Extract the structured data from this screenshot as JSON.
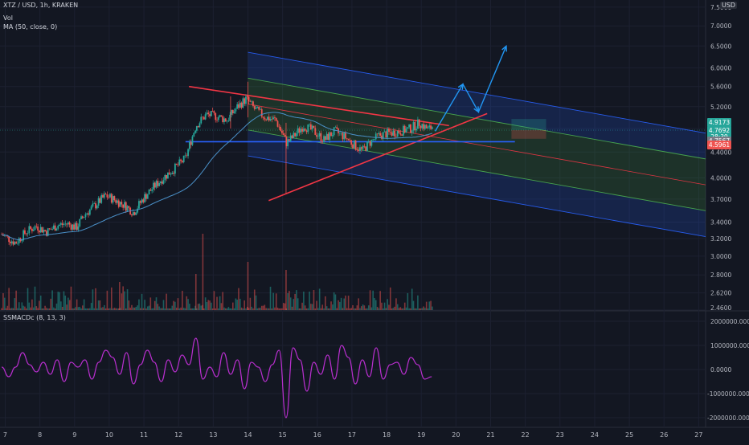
{
  "header": {
    "title": "XTZ / USD, 1h, KRAKEN",
    "vol_label": "Vol",
    "ma_label": "MA (50, close, 0)",
    "currency": "USD",
    "macd_label": "SSMACDc (8, 13, 3)"
  },
  "price_tags": [
    {
      "text": "4.9173",
      "color": "#26a69a"
    },
    {
      "text": "4.7692",
      "color": "#26a69a"
    },
    {
      "text": "28:39",
      "color": "#26a69a"
    },
    {
      "text": "4.7567",
      "color": "#787b86"
    },
    {
      "text": "4.5961",
      "color": "#ef5350"
    }
  ],
  "chart_data": [
    {
      "type": "candlestick",
      "pane": "price",
      "title": "XTZ / USD, 1h, KRAKEN",
      "y_scale": "log",
      "y_ticks": [
        "7.5000",
        "7.0000",
        "6.5000",
        "6.0000",
        "5.6000",
        "5.2000",
        "4.8000",
        "4.4000",
        "4.0000",
        "3.7000",
        "3.4000",
        "3.2000",
        "3.0000",
        "2.8000",
        "2.6200",
        "2.4600"
      ],
      "x_ticks": [
        "7",
        "8",
        "9",
        "10",
        "11",
        "12",
        "13",
        "14",
        "15",
        "16",
        "17",
        "18",
        "19",
        "20",
        "21",
        "22",
        "23",
        "24",
        "25",
        "26",
        "27"
      ],
      "x_range": [
        6.85,
        27.2
      ],
      "y_range": [
        2.46,
        7.7
      ],
      "close_path": [
        [
          6.9,
          3.25
        ],
        [
          7.3,
          3.15
        ],
        [
          7.6,
          3.28
        ],
        [
          7.9,
          3.35
        ],
        [
          8.2,
          3.28
        ],
        [
          8.5,
          3.36
        ],
        [
          8.8,
          3.38
        ],
        [
          9.05,
          3.33
        ],
        [
          9.3,
          3.5
        ],
        [
          9.6,
          3.62
        ],
        [
          9.9,
          3.75
        ],
        [
          10.2,
          3.68
        ],
        [
          10.5,
          3.6
        ],
        [
          10.7,
          3.52
        ],
        [
          11.0,
          3.72
        ],
        [
          11.3,
          3.88
        ],
        [
          11.6,
          4.02
        ],
        [
          11.9,
          4.15
        ],
        [
          12.2,
          4.3
        ],
        [
          12.5,
          4.85
        ],
        [
          12.8,
          5.05
        ],
        [
          13.1,
          5.02
        ],
        [
          13.4,
          4.95
        ],
        [
          13.7,
          5.2
        ],
        [
          13.95,
          5.35
        ],
        [
          14.2,
          5.15
        ],
        [
          14.5,
          5.0
        ],
        [
          14.8,
          4.95
        ],
        [
          15.0,
          4.7
        ],
        [
          15.1,
          4.55
        ],
        [
          15.3,
          4.65
        ],
        [
          15.6,
          4.85
        ],
        [
          15.9,
          4.75
        ],
        [
          16.2,
          4.6
        ],
        [
          16.5,
          4.75
        ],
        [
          16.8,
          4.65
        ],
        [
          17.1,
          4.5
        ],
        [
          17.3,
          4.42
        ],
        [
          17.5,
          4.55
        ],
        [
          17.8,
          4.68
        ],
        [
          18.1,
          4.72
        ],
        [
          18.4,
          4.75
        ],
        [
          18.7,
          4.8
        ],
        [
          18.95,
          4.9
        ],
        [
          19.2,
          4.78
        ],
        [
          19.35,
          4.85
        ]
      ]
    },
    {
      "type": "bar",
      "pane": "volume",
      "title": "Vol"
    },
    {
      "type": "line",
      "pane": "macd",
      "title": "SSMACDc (8, 13, 3)",
      "y_ticks": [
        "2000000.0000",
        "1000000.0000",
        "0.0000",
        "-1000000.0000",
        "-2000000.0000"
      ],
      "y_range": [
        -2000000,
        2000000
      ],
      "series": [
        {
          "x": [
            6.9,
            7.1,
            7.3,
            7.5,
            7.7,
            7.9,
            8.1,
            8.3,
            8.5,
            8.7,
            8.9,
            9.1,
            9.3,
            9.5,
            9.7,
            9.9,
            10.1,
            10.3,
            10.5,
            10.7,
            10.9,
            11.1,
            11.3,
            11.5,
            11.7,
            11.9,
            12.1,
            12.3,
            12.5,
            12.7,
            12.9,
            13.1,
            13.3,
            13.5,
            13.7,
            13.9,
            14.1,
            14.3,
            14.5,
            14.7,
            14.9,
            15.1,
            15.3,
            15.5,
            15.7,
            15.9,
            16.1,
            16.3,
            16.5,
            16.7,
            16.9,
            17.1,
            17.3,
            17.5,
            17.7,
            17.9,
            18.1,
            18.3,
            18.5,
            18.7,
            18.9,
            19.1,
            19.3
          ],
          "values": [
            100000,
            -300000,
            100000,
            700000,
            200000,
            -100000,
            300000,
            -200000,
            400000,
            -500000,
            300000,
            100000,
            400000,
            -400000,
            300000,
            800000,
            500000,
            -200000,
            700000,
            -600000,
            200000,
            800000,
            300000,
            -500000,
            400000,
            -100000,
            600000,
            200000,
            1300000,
            -400000,
            100000,
            -300000,
            700000,
            -200000,
            400000,
            -800000,
            300000,
            100000,
            -500000,
            200000,
            800000,
            -2000000,
            900000,
            400000,
            -900000,
            300000,
            -200000,
            600000,
            -400000,
            1000000,
            500000,
            -600000,
            400000,
            -300000,
            900000,
            -400000,
            200000,
            300000,
            -200000,
            500000,
            200000,
            -400000,
            -300000
          ]
        }
      ]
    }
  ]
}
